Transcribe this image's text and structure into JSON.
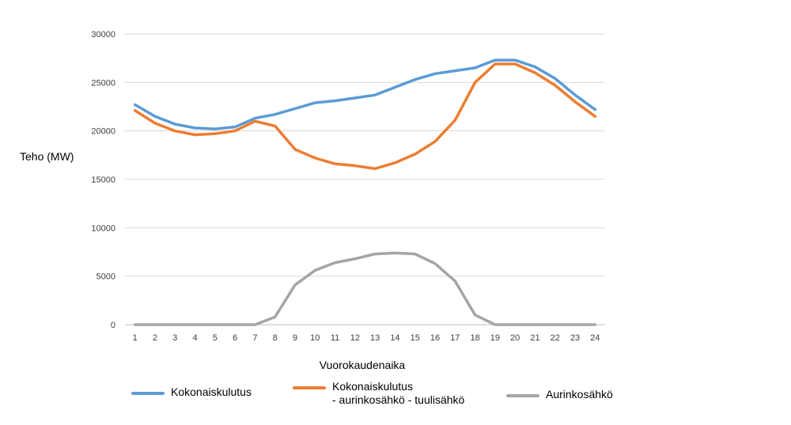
{
  "chart_data": {
    "type": "line",
    "title": "",
    "xlabel": "Vuorokaudenaika",
    "ylabel": "Teho (MW)",
    "x": [
      1,
      2,
      3,
      4,
      5,
      6,
      7,
      8,
      9,
      10,
      11,
      12,
      13,
      14,
      15,
      16,
      17,
      18,
      19,
      20,
      21,
      22,
      23,
      24
    ],
    "ylim": [
      0,
      30000
    ],
    "yticks": [
      0,
      5000,
      10000,
      15000,
      20000,
      25000,
      30000
    ],
    "grid": true,
    "legend_position": "bottom",
    "series": [
      {
        "name": "Kokonaiskulutus",
        "color": "#5B9BD5",
        "values": [
          22700,
          21500,
          20700,
          20300,
          20200,
          20400,
          21300,
          21700,
          22300,
          22900,
          23100,
          23400,
          23700,
          24500,
          25300,
          25900,
          26200,
          26500,
          27300,
          27300,
          26600,
          25400,
          23700,
          22200
        ]
      },
      {
        "name": "Kokonaiskulutus\n - aurinkosähkö - tuulisähkö",
        "color": "#ED7D31",
        "values": [
          22100,
          20800,
          20000,
          19600,
          19700,
          20000,
          21000,
          20500,
          18100,
          17200,
          16600,
          16400,
          16100,
          16700,
          17600,
          18900,
          21100,
          25000,
          26900,
          26900,
          26000,
          24700,
          23000,
          21500
        ]
      },
      {
        "name": "Aurinkosähkö",
        "color": "#A5A5A5",
        "values": [
          0,
          0,
          0,
          0,
          0,
          0,
          0,
          800,
          4100,
          5600,
          6400,
          6800,
          7300,
          7400,
          7300,
          6300,
          4500,
          1000,
          0,
          0,
          0,
          0,
          0,
          0
        ]
      }
    ]
  }
}
